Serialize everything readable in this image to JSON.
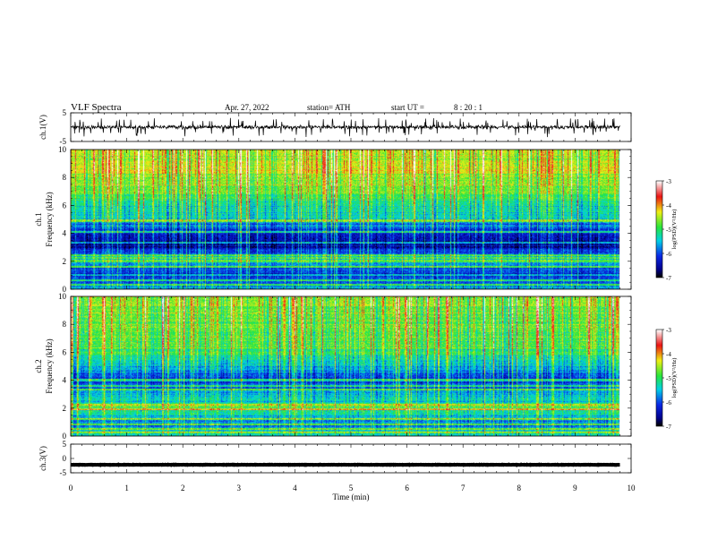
{
  "header": {
    "title": "VLF Spectra",
    "date": "Apr. 27, 2022",
    "station": "station= ATH",
    "start_label": "start  UT  =",
    "start_time": "8  : 20 : 1"
  },
  "chart_data": [
    {
      "type": "line",
      "panel": "ch1-waveform",
      "ylabel": "ch.1(V)",
      "xlim": [
        0,
        10
      ],
      "ylim": [
        -5,
        5
      ],
      "yticks": [
        "5",
        "-5"
      ],
      "x_extent_min": [
        0,
        9.8
      ],
      "y_baseline": 0,
      "y_noise_amplitude": 1.5,
      "color": "#000000"
    },
    {
      "type": "heatmap",
      "panel": "ch1-spectrogram",
      "ylabel": "ch.1\nFrequency (kHz)",
      "xlim": [
        0,
        10
      ],
      "ylim": [
        0,
        10
      ],
      "yticks": [
        "0",
        "2",
        "4",
        "6",
        "8",
        "10"
      ],
      "x_extent_min": [
        0,
        9.8
      ],
      "colorbar": {
        "label": "log(PSD)(V²/Hz)",
        "range": [
          -7,
          -3
        ],
        "ticks": [
          "-3",
          "-4",
          "-5",
          "-6",
          "-7"
        ]
      },
      "spectrum_profile_kHz": [
        {
          "f": 0.0,
          "log_psd": -5.6
        },
        {
          "f": 1.0,
          "log_psd": -6.3
        },
        {
          "f": 2.0,
          "log_psd": -5.5
        },
        {
          "f": 3.0,
          "log_psd": -6.5
        },
        {
          "f": 4.0,
          "log_psd": -6.4
        },
        {
          "f": 5.0,
          "log_psd": -5.6
        },
        {
          "f": 6.0,
          "log_psd": -5.2
        },
        {
          "f": 7.0,
          "log_psd": -4.8
        },
        {
          "f": 8.0,
          "log_psd": -4.5
        },
        {
          "f": 9.0,
          "log_psd": -4.4
        },
        {
          "f": 10.0,
          "log_psd": -4.4
        }
      ],
      "narrowband_lines_kHz": [
        0.3,
        0.6,
        1.0,
        1.6,
        2.0,
        2.2,
        2.4,
        3.3,
        4.1,
        4.9
      ]
    },
    {
      "type": "heatmap",
      "panel": "ch2-spectrogram",
      "ylabel": "ch.2\nFrequency (kHz)",
      "xlim": [
        0,
        10
      ],
      "ylim": [
        0,
        10
      ],
      "yticks": [
        "0",
        "2",
        "4",
        "6",
        "8",
        "10"
      ],
      "x_extent_min": [
        0,
        9.8
      ],
      "colorbar": {
        "label": "log(PSD)(V²/Hz)",
        "range": [
          -7,
          -3
        ],
        "ticks": [
          "-3",
          "-4",
          "-5",
          "-6",
          "-7"
        ]
      },
      "spectrum_profile_kHz": [
        {
          "f": 0.0,
          "log_psd": -5.4
        },
        {
          "f": 1.0,
          "log_psd": -5.8
        },
        {
          "f": 2.0,
          "log_psd": -5.0
        },
        {
          "f": 3.0,
          "log_psd": -5.6
        },
        {
          "f": 4.0,
          "log_psd": -6.2
        },
        {
          "f": 5.0,
          "log_psd": -5.5
        },
        {
          "f": 6.0,
          "log_psd": -5.0
        },
        {
          "f": 7.0,
          "log_psd": -4.8
        },
        {
          "f": 8.0,
          "log_psd": -4.7
        },
        {
          "f": 9.0,
          "log_psd": -4.7
        },
        {
          "f": 10.0,
          "log_psd": -4.6
        }
      ],
      "narrowband_lines_kHz": [
        0.2,
        0.5,
        0.8,
        1.2,
        1.9,
        2.2,
        3.3,
        3.6,
        4.0
      ]
    },
    {
      "type": "line",
      "panel": "ch3-waveform",
      "ylabel": "ch.3(V)",
      "xlim": [
        0,
        10
      ],
      "ylim": [
        -5,
        5
      ],
      "yticks": [
        "5",
        "0",
        "-5"
      ],
      "x_extent_min": [
        0,
        9.8
      ],
      "y_baseline": -2.2,
      "y_noise_amplitude": 0.15,
      "color": "#000000"
    }
  ],
  "xaxis": {
    "label": "Time  (min)",
    "ticks": [
      "0",
      "1",
      "2",
      "3",
      "4",
      "5",
      "6",
      "7",
      "8",
      "9",
      "10"
    ]
  }
}
